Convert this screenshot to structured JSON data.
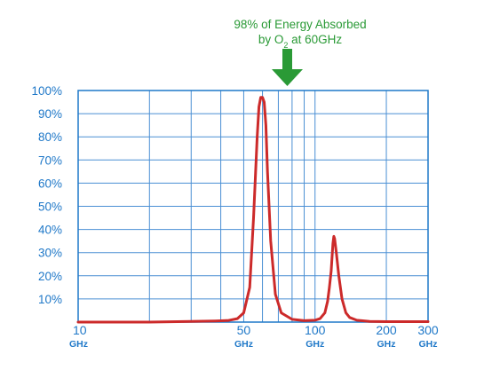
{
  "chart_data": {
    "type": "line",
    "annotation": {
      "line1": "98% of Energy Absorbed",
      "line2_prefix": "by O",
      "line2_sub": "2",
      "line2_suffix": " at 60GHz",
      "color": "#2a9a36"
    },
    "xscale": "log",
    "xlim": [
      10,
      300
    ],
    "ylim": [
      0,
      100
    ],
    "yticks": [
      {
        "value": 100,
        "label": "100%"
      },
      {
        "value": 90,
        "label": "90%"
      },
      {
        "value": 80,
        "label": "80%"
      },
      {
        "value": 70,
        "label": "70%"
      },
      {
        "value": 60,
        "label": "60%"
      },
      {
        "value": 50,
        "label": "50%"
      },
      {
        "value": 40,
        "label": "40%"
      },
      {
        "value": 30,
        "label": "30%"
      },
      {
        "value": 20,
        "label": "20%"
      },
      {
        "value": 10,
        "label": "10%"
      }
    ],
    "xticks": [
      {
        "value": 10,
        "label": "10",
        "unit": "GHz"
      },
      {
        "value": 50,
        "label": "50",
        "unit": "GHz"
      },
      {
        "value": 100,
        "label": "100",
        "unit": "GHz"
      },
      {
        "value": 200,
        "label": "200",
        "unit": "GHz"
      },
      {
        "value": 300,
        "label": "300",
        "unit": "GHz"
      }
    ],
    "x_gridlines": [
      10,
      20,
      30,
      40,
      50,
      60,
      70,
      80,
      90,
      100,
      200,
      300
    ],
    "series": [
      {
        "color": "#cc2a2a",
        "x": [
          10,
          20,
          30,
          38,
          43,
          47,
          50,
          53,
          55,
          57,
          58,
          59,
          60,
          61,
          62,
          63,
          65,
          68,
          72,
          80,
          90,
          100,
          105,
          110,
          113,
          115,
          117,
          118,
          119,
          120,
          121,
          123,
          126,
          130,
          135,
          140,
          150,
          170,
          200,
          300
        ],
        "y": [
          0,
          0,
          0.3,
          0.5,
          0.7,
          1.5,
          4,
          15,
          45,
          80,
          93,
          97,
          97,
          95,
          85,
          65,
          35,
          12,
          4,
          1.2,
          0.6,
          0.8,
          1.5,
          4,
          9,
          15,
          22,
          28,
          34,
          37,
          36,
          30,
          20,
          10,
          4,
          2,
          0.8,
          0.3,
          0.2,
          0.2
        ]
      }
    ],
    "colors": {
      "axes": "#1f78c8",
      "grid": "#4a8fd4",
      "annotation_arrow": "#2a9a36"
    },
    "grid": true
  }
}
